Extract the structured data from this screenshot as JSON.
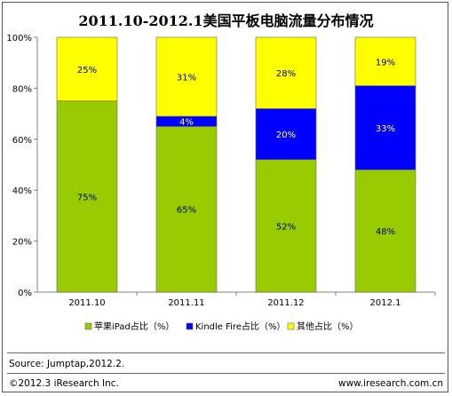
{
  "title": "2011.10-2012.1美国平板电脑流量分布情况",
  "chart_data": {
    "type": "bar",
    "stacked": true,
    "categories": [
      "2011.10",
      "2011.11",
      "2011.12",
      "2012.1"
    ],
    "series": [
      {
        "name": "苹果iPad占比（%）",
        "color": "#99CC00",
        "values": [
          75,
          65,
          52,
          48
        ],
        "labels": [
          "75%",
          "65%",
          "52%",
          "48%"
        ]
      },
      {
        "name": "Kindle Fire占比（%）",
        "color": "#0000FF",
        "values": [
          0,
          4,
          20,
          33
        ],
        "labels": [
          "",
          "4%",
          "20%",
          "33%"
        ]
      },
      {
        "name": "其他占比（%）",
        "color": "#FFFF00",
        "values": [
          25,
          31,
          28,
          19
        ],
        "labels": [
          "25%",
          "31%",
          "28%",
          "19%"
        ]
      }
    ],
    "ylim": [
      0,
      100
    ],
    "yticks": [
      "0%",
      "20%",
      "40%",
      "60%",
      "80%",
      "100%"
    ],
    "legend_position": "bottom"
  },
  "source": "Source: Jumptap,2012.2.",
  "copyright": "©2012.3 iResearch Inc.",
  "website": "www.iresearch.com.cn"
}
